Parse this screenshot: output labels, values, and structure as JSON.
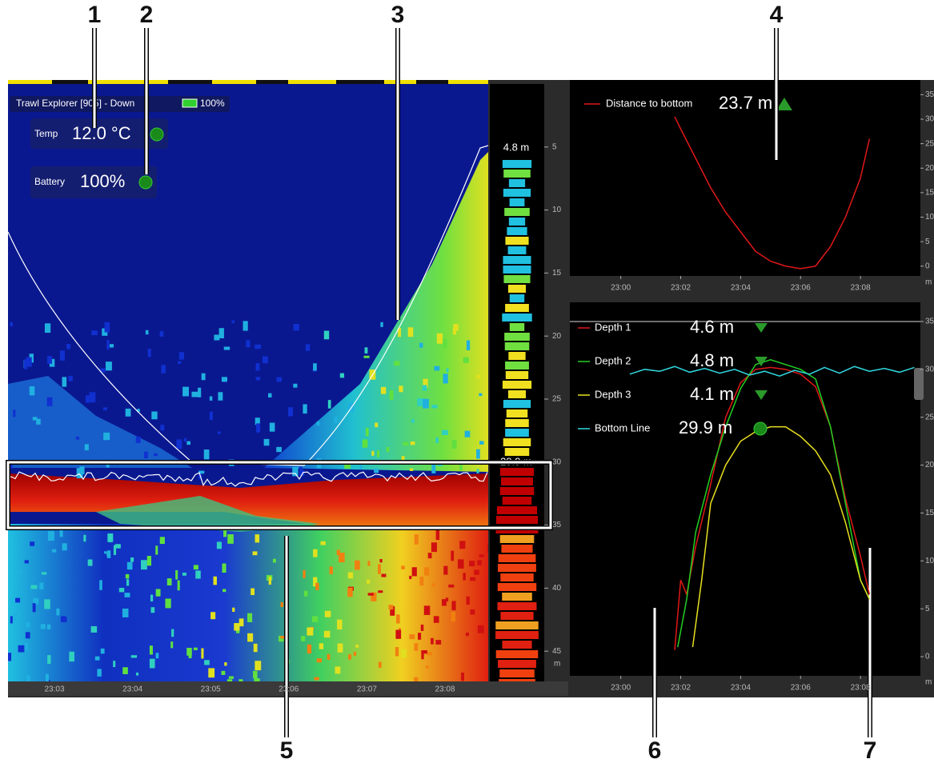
{
  "callouts": [
    "1",
    "2",
    "3",
    "4",
    "5",
    "6",
    "7"
  ],
  "echogram": {
    "title": "Trawl Explorer [905] - Down",
    "battery_level": "100%",
    "temp_label": "Temp",
    "temp_value": "12.0 °C",
    "battery_label": "Battery",
    "battery_value": "100%",
    "surface_depth": "4.8 m",
    "bottom_depth": "29.9 m",
    "ylim": [
      0,
      47.4
    ],
    "yticks": [
      5,
      10,
      15,
      20,
      25,
      30,
      35,
      40,
      45
    ],
    "y_unit": "m",
    "times": [
      "23:03",
      "23:04",
      "23:05",
      "23:06",
      "23:07",
      "23:08"
    ]
  },
  "distance_chart": {
    "legend": "Distance to bottom",
    "reading": "23.7 m",
    "color": "#e01818",
    "x": [
      1.8,
      2.0,
      2.5,
      3.0,
      3.5,
      4.0,
      4.5,
      5.0,
      5.5,
      6.0,
      6.5,
      7.0,
      7.5,
      8.0,
      8.3
    ],
    "values": [
      30.5,
      28,
      22,
      16,
      11,
      7,
      3,
      1,
      0,
      -0.5,
      0,
      4,
      10,
      18,
      26
    ],
    "xlim": [
      -1.7,
      10
    ],
    "ylim": [
      -2,
      38
    ],
    "xticks": [
      {
        "value": 0,
        "label": "23:00"
      },
      {
        "value": 2,
        "label": "23:02"
      },
      {
        "value": 4,
        "label": "23:04"
      },
      {
        "value": 6,
        "label": "23:06"
      },
      {
        "value": 8,
        "label": "23:08"
      }
    ],
    "yticks": [
      0,
      5,
      10,
      15,
      20,
      25,
      30,
      35
    ],
    "y_unit": "m"
  },
  "depth_chart": {
    "series": [
      {
        "name": "Depth 1",
        "reading": "4.6 m",
        "color": "#e01818",
        "x": [
          1.8,
          2.0,
          2.2,
          2.5,
          3.0,
          3.5,
          4.0,
          4.5,
          5.0,
          5.5,
          6.0,
          6.5,
          7.0,
          7.5,
          8.0,
          8.3
        ],
        "values": [
          0.7,
          8,
          6.5,
          11.5,
          18,
          25,
          28.6,
          30,
          30.2,
          30,
          29.5,
          28.2,
          24,
          16.5,
          10.5,
          6.5
        ]
      },
      {
        "name": "Depth 2",
        "reading": "4.8 m",
        "color": "#22d022",
        "x": [
          1.9,
          2.2,
          2.5,
          3.0,
          3.5,
          4.0,
          4.5,
          5.0,
          5.5,
          6.0,
          6.5,
          7.0,
          7.5,
          8.0,
          8.3
        ],
        "values": [
          1,
          6,
          13,
          19,
          24,
          28,
          30.5,
          31,
          30.5,
          30,
          29,
          24,
          16,
          8,
          6
        ]
      },
      {
        "name": "Depth 3",
        "reading": "4.1 m",
        "color": "#e8e020",
        "x": [
          2.4,
          2.7,
          3.0,
          3.5,
          4.0,
          4.5,
          5.0,
          5.5,
          6.0,
          6.5,
          7.0,
          7.5,
          8.0,
          8.3
        ],
        "values": [
          1,
          8,
          16,
          20,
          22.5,
          23.5,
          24,
          24,
          23,
          21.5,
          19,
          14,
          8,
          6
        ]
      },
      {
        "name": "Bottom Line",
        "reading": "29.9 m",
        "color": "#30d8e0",
        "x": [
          0.3,
          0.8,
          1.3,
          1.8,
          2.3,
          2.8,
          3.3,
          3.8,
          4.3,
          4.8,
          5.3,
          5.8,
          6.3,
          6.8,
          7.3,
          7.8,
          8.3,
          8.8,
          9.3,
          9.8
        ],
        "values": [
          29.5,
          30,
          29.8,
          30.3,
          29.7,
          30.1,
          29.6,
          30,
          29.4,
          29.8,
          29.3,
          29.9,
          29.5,
          30.2,
          29.6,
          30.3,
          29.8,
          30.1,
          29.7,
          30.2
        ]
      }
    ],
    "xlim": [
      -1.7,
      10
    ],
    "ylim": [
      -2,
      37
    ],
    "xticks": [
      {
        "value": 0,
        "label": "23:00"
      },
      {
        "value": 2,
        "label": "23:02"
      },
      {
        "value": 4,
        "label": "23:04"
      },
      {
        "value": 6,
        "label": "23:06"
      },
      {
        "value": 8,
        "label": "23:08"
      }
    ],
    "yticks": [
      0,
      5,
      10,
      15,
      20,
      25,
      30,
      35
    ],
    "y_unit": "m"
  }
}
